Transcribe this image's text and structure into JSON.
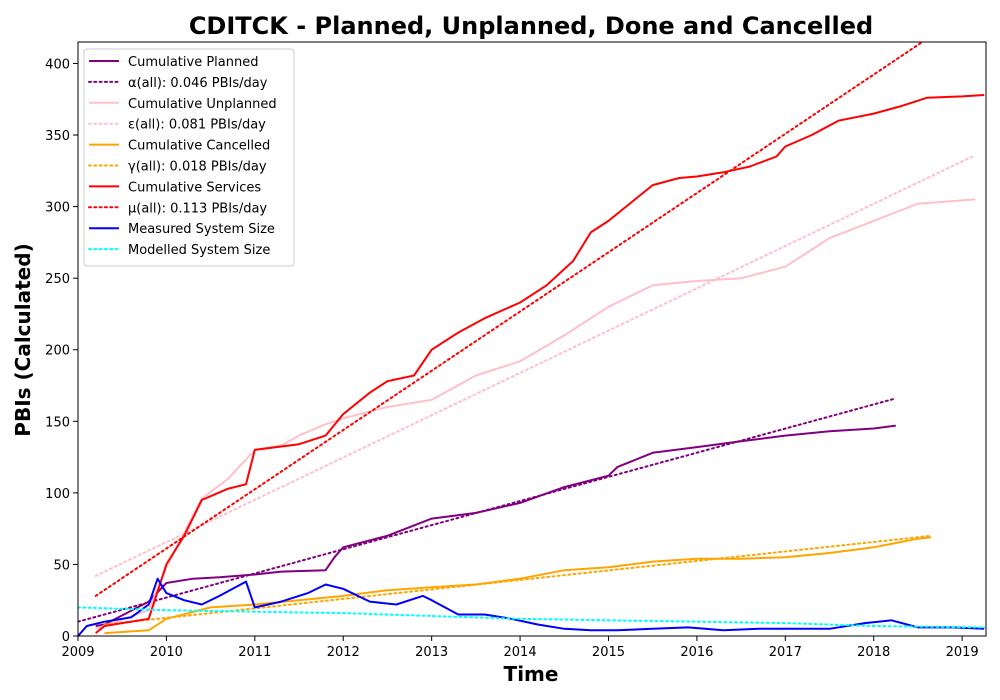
{
  "chart_data": {
    "type": "line",
    "title": "CDITCK - Planned, Unplanned, Done  and Cancelled",
    "xlabel": "Time",
    "ylabel": "PBIs (Calculated)",
    "xlim": [
      2009.0,
      2019.27
    ],
    "ylim": [
      0,
      415
    ],
    "x_ticks": [
      2009,
      2010,
      2011,
      2012,
      2013,
      2014,
      2015,
      2016,
      2017,
      2018,
      2019
    ],
    "y_ticks": [
      0,
      50,
      100,
      150,
      200,
      250,
      300,
      350,
      400
    ],
    "grid": false,
    "legend_position": "top-left",
    "series": [
      {
        "name": "Cumulative Planned",
        "color": "#800080",
        "style": "solid",
        "x": [
          2009.2,
          2009.3,
          2009.8,
          2010.0,
          2010.3,
          2010.6,
          2011.0,
          2011.3,
          2011.8,
          2011.9,
          2012.0,
          2012.5,
          2013.0,
          2013.5,
          2014.0,
          2014.5,
          2015.0,
          2015.1,
          2015.5,
          2016.0,
          2016.5,
          2017.0,
          2017.5,
          2018.0,
          2018.25
        ],
        "y": [
          7,
          8,
          24,
          37,
          40,
          41,
          43,
          45,
          46,
          55,
          62,
          70,
          82,
          86,
          93,
          104,
          112,
          118,
          128,
          132,
          136,
          140,
          143,
          145,
          147
        ]
      },
      {
        "name": "α(all): 0.046 PBIs/day",
        "color": "#800080",
        "style": "dotted",
        "x": [
          2009.0,
          2018.25
        ],
        "y": [
          10,
          166
        ]
      },
      {
        "name": "Cumulative Unplanned",
        "color": "#ffc0cb",
        "style": "solid",
        "x": [
          2009.2,
          2009.8,
          2010.0,
          2010.2,
          2010.4,
          2010.7,
          2011.0,
          2011.3,
          2011.5,
          2011.8,
          2012.0,
          2012.5,
          2013.0,
          2013.5,
          2014.0,
          2014.5,
          2015.0,
          2015.5,
          2016.0,
          2016.5,
          2017.0,
          2017.5,
          2018.0,
          2018.5,
          2019.15
        ],
        "y": [
          5,
          18,
          48,
          72,
          96,
          110,
          130,
          133,
          140,
          148,
          152,
          160,
          165,
          182,
          192,
          210,
          230,
          245,
          248,
          250,
          258,
          278,
          290,
          302,
          305
        ]
      },
      {
        "name": "ε(all): 0.081 PBIs/day",
        "color": "#ffc0cb",
        "style": "dotted",
        "x": [
          2009.2,
          2019.15
        ],
        "y": [
          42,
          336
        ]
      },
      {
        "name": "Cumulative Cancelled",
        "color": "#ffa500",
        "style": "solid",
        "x": [
          2009.3,
          2009.8,
          2010.0,
          2010.5,
          2011.0,
          2011.5,
          2012.0,
          2012.5,
          2013.0,
          2013.5,
          2014.0,
          2014.5,
          2015.0,
          2015.5,
          2016.0,
          2016.5,
          2017.0,
          2017.5,
          2018.0,
          2018.5,
          2018.65
        ],
        "y": [
          2,
          4,
          12,
          20,
          22,
          25,
          28,
          32,
          34,
          36,
          40,
          46,
          48,
          52,
          54,
          54,
          55,
          58,
          62,
          68,
          69
        ]
      },
      {
        "name": "γ(all): 0.018 PBIs/day",
        "color": "#ffa500",
        "style": "dotted",
        "x": [
          2009.3,
          2018.65
        ],
        "y": [
          8,
          70
        ]
      },
      {
        "name": "Cumulative Services",
        "color": "#ff0000",
        "style": "solid",
        "x": [
          2009.2,
          2009.3,
          2009.8,
          2010.0,
          2010.2,
          2010.4,
          2010.7,
          2010.9,
          2011.0,
          2011.5,
          2011.8,
          2012.0,
          2012.3,
          2012.5,
          2012.8,
          2013.0,
          2013.3,
          2013.6,
          2014.0,
          2014.3,
          2014.6,
          2014.8,
          2015.0,
          2015.3,
          2015.5,
          2015.8,
          2016.0,
          2016.3,
          2016.6,
          2016.9,
          2017.0,
          2017.3,
          2017.6,
          2018.0,
          2018.3,
          2018.6,
          2019.0,
          2019.25
        ],
        "y": [
          2,
          7,
          12,
          50,
          70,
          95,
          103,
          106,
          130,
          134,
          140,
          155,
          170,
          178,
          182,
          200,
          212,
          222,
          233,
          245,
          262,
          282,
          290,
          305,
          315,
          320,
          321,
          324,
          328,
          335,
          342,
          350,
          360,
          365,
          370,
          376,
          377,
          378
        ]
      },
      {
        "name": "μ(all): 0.113 PBIs/day",
        "color": "#ff0000",
        "style": "dotted",
        "x": [
          2009.2,
          2018.55
        ],
        "y": [
          28,
          415
        ]
      },
      {
        "name": "Measured System Size",
        "color": "#0000ff",
        "style": "solid",
        "x": [
          2009.0,
          2009.1,
          2009.3,
          2009.6,
          2009.8,
          2009.9,
          2010.0,
          2010.2,
          2010.4,
          2010.6,
          2010.9,
          2011.0,
          2011.3,
          2011.6,
          2011.8,
          2012.0,
          2012.3,
          2012.6,
          2012.9,
          2013.0,
          2013.3,
          2013.6,
          2013.9,
          2014.2,
          2014.5,
          2014.8,
          2015.1,
          2015.5,
          2015.9,
          2016.3,
          2016.7,
          2017.1,
          2017.5,
          2017.9,
          2018.2,
          2018.5,
          2018.9,
          2019.25
        ],
        "y": [
          0,
          7,
          10,
          13,
          22,
          40,
          30,
          25,
          22,
          28,
          38,
          20,
          24,
          30,
          36,
          33,
          24,
          22,
          28,
          25,
          15,
          15,
          12,
          8,
          5,
          4,
          4,
          5,
          6,
          4,
          5,
          5,
          5,
          9,
          11,
          6,
          6,
          5
        ]
      },
      {
        "name": "Modelled System Size",
        "color": "#00ffff",
        "style": "dotted",
        "x": [
          2009.0,
          2010.0,
          2011.0,
          2012.0,
          2013.0,
          2014.0,
          2015.0,
          2016.0,
          2017.0,
          2018.0,
          2019.25
        ],
        "y": [
          20,
          18,
          17,
          16,
          14,
          12,
          11,
          10,
          9,
          7,
          6
        ]
      }
    ]
  }
}
